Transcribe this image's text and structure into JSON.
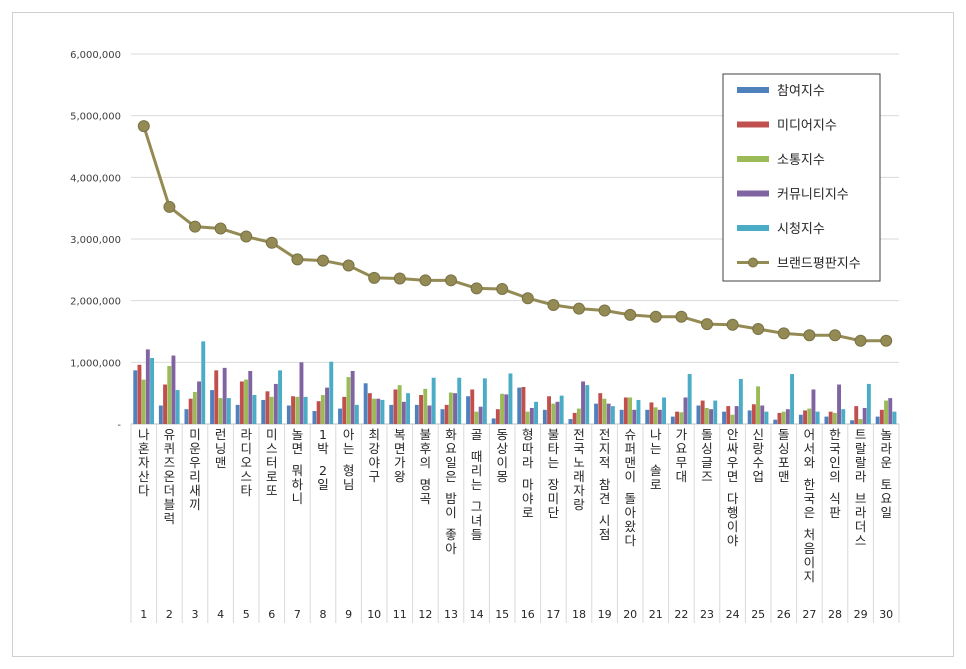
{
  "chart_data": {
    "type": "bar",
    "categories": [
      "나혼자산다",
      "유퀴즈온더블럭",
      "미운우리새끼",
      "런닝맨",
      "라디오스타",
      "미스터로또",
      "놀면 뭐하니",
      "1박 2일",
      "아는 형님",
      "최강야구",
      "복면가왕",
      "불후의 명곡",
      "화요일은 밤이 좋아",
      "골 때리는 그녀들",
      "동상이몽",
      "형따라 마야로",
      "불타는 장미단",
      "전국노래자랑",
      "전지적 참견 시점",
      "슈퍼맨이 돌아왔다",
      "나는 솔로",
      "가요무대",
      "돌싱글즈",
      "안싸우면 다행이야",
      "신랑수업",
      "돌싱포맨",
      "어서와 한국은 처음이지",
      "한국인의 식판",
      "트랄랄라 브라더스",
      "놀라운 토요일"
    ],
    "ranks": [
      "1",
      "2",
      "3",
      "4",
      "5",
      "6",
      "7",
      "8",
      "9",
      "10",
      "11",
      "12",
      "13",
      "14",
      "15",
      "16",
      "17",
      "18",
      "19",
      "20",
      "21",
      "22",
      "23",
      "24",
      "25",
      "26",
      "27",
      "28",
      "29",
      "30"
    ],
    "series": [
      {
        "name": "참여지수",
        "color": "#4f81bd",
        "values": [
          870000,
          300000,
          240000,
          550000,
          310000,
          390000,
          300000,
          210000,
          250000,
          660000,
          310000,
          310000,
          240000,
          450000,
          90000,
          590000,
          230000,
          80000,
          330000,
          230000,
          230000,
          120000,
          300000,
          200000,
          220000,
          70000,
          150000,
          120000,
          60000,
          120000
        ]
      },
      {
        "name": "미디어지수",
        "color": "#c0504d",
        "values": [
          960000,
          640000,
          410000,
          870000,
          690000,
          530000,
          450000,
          370000,
          440000,
          500000,
          560000,
          470000,
          310000,
          560000,
          240000,
          600000,
          450000,
          180000,
          500000,
          430000,
          350000,
          200000,
          380000,
          290000,
          320000,
          180000,
          220000,
          200000,
          290000,
          230000
        ]
      },
      {
        "name": "소통지수",
        "color": "#9bbb59",
        "values": [
          720000,
          940000,
          520000,
          420000,
          720000,
          440000,
          440000,
          470000,
          760000,
          410000,
          630000,
          570000,
          510000,
          200000,
          490000,
          200000,
          330000,
          250000,
          410000,
          430000,
          270000,
          190000,
          260000,
          150000,
          610000,
          200000,
          250000,
          180000,
          80000,
          380000
        ]
      },
      {
        "name": "커뮤니티지수",
        "color": "#8064a2",
        "values": [
          1210000,
          1110000,
          690000,
          910000,
          860000,
          650000,
          1000000,
          590000,
          860000,
          410000,
          360000,
          300000,
          500000,
          280000,
          480000,
          260000,
          360000,
          690000,
          330000,
          230000,
          230000,
          430000,
          240000,
          290000,
          300000,
          240000,
          560000,
          640000,
          260000,
          420000
        ]
      },
      {
        "name": "시청지수",
        "color": "#4bacc6",
        "values": [
          1070000,
          550000,
          1340000,
          420000,
          470000,
          870000,
          440000,
          1010000,
          310000,
          390000,
          500000,
          750000,
          750000,
          740000,
          820000,
          360000,
          460000,
          630000,
          290000,
          390000,
          430000,
          810000,
          380000,
          730000,
          200000,
          810000,
          200000,
          240000,
          650000,
          200000
        ]
      },
      {
        "name": "브랜드평판지수",
        "color": "#948a54",
        "line": true,
        "values": [
          4830000,
          3520000,
          3200000,
          3170000,
          3040000,
          2940000,
          2670000,
          2650000,
          2570000,
          2370000,
          2360000,
          2330000,
          2330000,
          2200000,
          2190000,
          2040000,
          1930000,
          1870000,
          1840000,
          1770000,
          1740000,
          1740000,
          1620000,
          1610000,
          1540000,
          1470000,
          1440000,
          1440000,
          1350000,
          1350000
        ]
      }
    ],
    "y_ticks": [
      "6,000,000",
      "5,000,000",
      "4,000,000",
      "3,000,000",
      "2,000,000",
      "1,000,000",
      "-"
    ],
    "y_tick_values": [
      6000000,
      5000000,
      4000000,
      3000000,
      2000000,
      1000000,
      0
    ],
    "ylim": [
      0,
      6000000
    ],
    "grid": true,
    "legend_position": "top-right"
  }
}
